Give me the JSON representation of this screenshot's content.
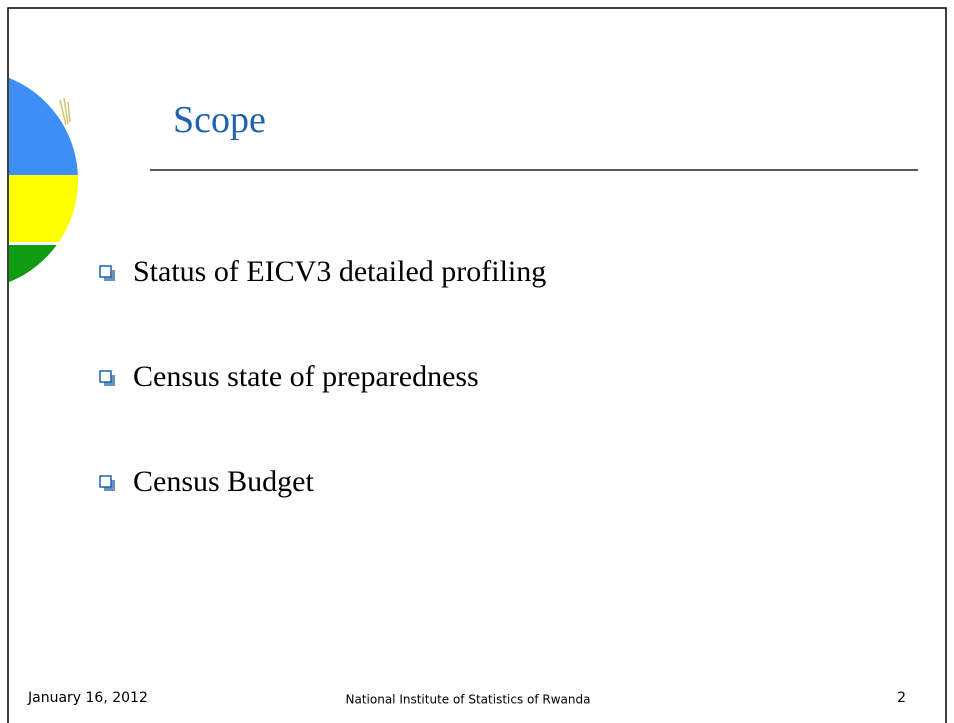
{
  "title": "Scope",
  "bullets": [
    "Status of EICV3 detailed profiling",
    "Census state of preparedness",
    "Census Budget"
  ],
  "footer": {
    "date": "January 16, 2012",
    "organization": "National Institute of Statistics of Rwanda",
    "page_number": "2"
  }
}
